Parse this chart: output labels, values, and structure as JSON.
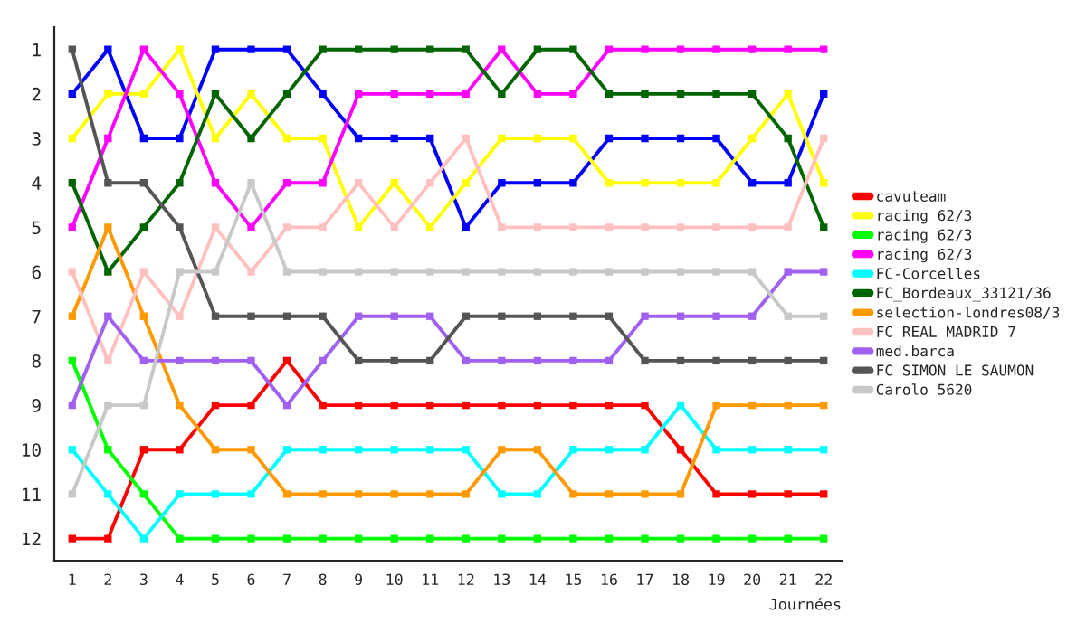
{
  "chart_data": {
    "type": "line",
    "xlabel": "Journées",
    "x": [
      1,
      2,
      3,
      4,
      5,
      6,
      7,
      8,
      9,
      10,
      11,
      12,
      13,
      14,
      15,
      16,
      17,
      18,
      19,
      20,
      21,
      22
    ],
    "xlim": [
      0.5,
      22.5
    ],
    "xticks": [
      1,
      2,
      3,
      4,
      5,
      6,
      7,
      8,
      9,
      10,
      11,
      12,
      13,
      14,
      15,
      16,
      17,
      18,
      19,
      20,
      21,
      22
    ],
    "ylim": [
      12.5,
      0.5
    ],
    "yticks": [
      1,
      2,
      3,
      4,
      5,
      6,
      7,
      8,
      9,
      10,
      11,
      12
    ],
    "grid": false,
    "legend": "right",
    "marker": "square",
    "line_style": "solid",
    "series": [
      {
        "color": "#0000ff",
        "values": [
          2,
          1,
          3,
          3,
          1,
          1,
          1,
          2,
          3,
          3,
          3,
          5,
          4,
          4,
          4,
          3,
          3,
          3,
          3,
          4,
          4,
          2
        ]
      },
      {
        "name": "cavuteam",
        "color": "#ff0000",
        "values": [
          12,
          12,
          10,
          10,
          9,
          9,
          8,
          9,
          9,
          9,
          9,
          9,
          9,
          9,
          9,
          9,
          9,
          10,
          11,
          11,
          11,
          11
        ]
      },
      {
        "name": "racing 62/3",
        "color": "#ffff00",
        "values": [
          3,
          2,
          2,
          1,
          3,
          2,
          3,
          3,
          5,
          4,
          5,
          4,
          3,
          3,
          3,
          4,
          4,
          4,
          4,
          3,
          2,
          4
        ]
      },
      {
        "name": "racing 62/3",
        "color": "#00ff00",
        "values": [
          8,
          10,
          11,
          12,
          12,
          12,
          12,
          12,
          12,
          12,
          12,
          12,
          12,
          12,
          12,
          12,
          12,
          12,
          12,
          12,
          12,
          12
        ]
      },
      {
        "name": "racing 62/3",
        "color": "#ff00ff",
        "values": [
          5,
          3,
          1,
          2,
          4,
          5,
          4,
          4,
          2,
          2,
          2,
          2,
          1,
          2,
          2,
          1,
          1,
          1,
          1,
          1,
          1,
          1
        ]
      },
      {
        "name": "FC-Corcelles",
        "color": "#00ffff",
        "values": [
          10,
          11,
          12,
          11,
          11,
          11,
          10,
          10,
          10,
          10,
          10,
          10,
          11,
          11,
          10,
          10,
          10,
          9,
          10,
          10,
          10,
          10
        ]
      },
      {
        "name": "FC_Bordeaux_33121/36",
        "color": "#006400",
        "values": [
          4,
          6,
          5,
          4,
          2,
          3,
          2,
          1,
          1,
          1,
          1,
          1,
          2,
          1,
          1,
          2,
          2,
          2,
          2,
          2,
          3,
          5
        ]
      },
      {
        "name": "selection-londres08/3",
        "color": "#ff9900",
        "values": [
          7,
          5,
          7,
          9,
          10,
          10,
          11,
          11,
          11,
          11,
          11,
          11,
          10,
          10,
          11,
          11,
          11,
          11,
          9,
          9,
          9,
          9
        ]
      },
      {
        "name": "FC REAL MADRID 7",
        "color": "#ffc0c0",
        "values": [
          6,
          8,
          6,
          7,
          5,
          6,
          5,
          5,
          4,
          5,
          4,
          3,
          5,
          5,
          5,
          5,
          5,
          5,
          5,
          5,
          5,
          3
        ]
      },
      {
        "name": "med.barca",
        "color": "#a060f0",
        "values": [
          9,
          7,
          8,
          8,
          8,
          8,
          9,
          8,
          7,
          7,
          7,
          8,
          8,
          8,
          8,
          8,
          7,
          7,
          7,
          7,
          6,
          6
        ]
      },
      {
        "name": "FC SIMON LE SAUMON",
        "color": "#555555",
        "values": [
          1,
          4,
          4,
          5,
          7,
          7,
          7,
          7,
          8,
          8,
          8,
          7,
          7,
          7,
          7,
          7,
          8,
          8,
          8,
          8,
          8,
          8
        ]
      },
      {
        "name": "Carolo 5620",
        "color": "#c8c8c8",
        "values": [
          11,
          9,
          9,
          6,
          6,
          4,
          6,
          6,
          6,
          6,
          6,
          6,
          6,
          6,
          6,
          6,
          6,
          6,
          6,
          6,
          7,
          7
        ]
      }
    ]
  }
}
